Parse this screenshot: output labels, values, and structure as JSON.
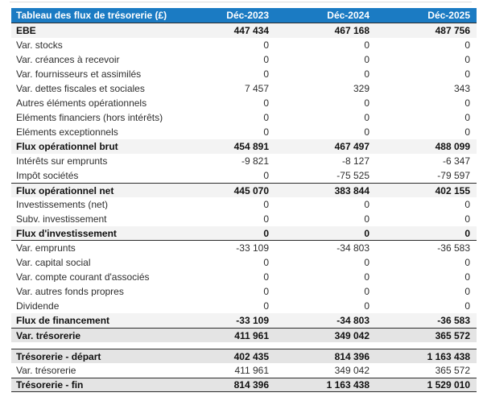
{
  "colors": {
    "header_bg": "#1b7bc3",
    "header_text": "#ffffff",
    "subtotal_row_bg": "#f3f3f3",
    "summary_row_bg": "#e4e4e4",
    "divider": "#2b2b2b"
  },
  "table": {
    "title": "Tableau des flux de trésorerie (£)",
    "columns": [
      "Déc-2023",
      "Déc-2024",
      "Déc-2025"
    ],
    "rows": [
      {
        "label": "EBE",
        "values": [
          "447 434",
          "467 168",
          "487 756"
        ],
        "bold": true,
        "bg": "light"
      },
      {
        "label": "Var. stocks",
        "values": [
          "0",
          "0",
          "0"
        ]
      },
      {
        "label": "Var. créances à recevoir",
        "values": [
          "0",
          "0",
          "0"
        ]
      },
      {
        "label": "Var. fournisseurs et assimilés",
        "values": [
          "0",
          "0",
          "0"
        ]
      },
      {
        "label": "Var. dettes fiscales et sociales",
        "values": [
          "7 457",
          "329",
          "343"
        ]
      },
      {
        "label": "Autres éléments opérationnels",
        "values": [
          "0",
          "0",
          "0"
        ]
      },
      {
        "label": "Eléments financiers (hors intérêts)",
        "values": [
          "0",
          "0",
          "0"
        ]
      },
      {
        "label": "Eléments exceptionnels",
        "values": [
          "0",
          "0",
          "0"
        ]
      },
      {
        "label": "Flux opérationnel brut",
        "values": [
          "454 891",
          "467 497",
          "488 099"
        ],
        "bold": true,
        "bg": "light"
      },
      {
        "label": "Intérêts sur emprunts",
        "values": [
          "-9 821",
          "-8 127",
          "-6 347"
        ]
      },
      {
        "label": "Impôt sociétés",
        "values": [
          "0",
          "-75 525",
          "-79 597"
        ]
      },
      {
        "label": "Flux opérationnel net",
        "values": [
          "445 070",
          "383 844",
          "402 155"
        ],
        "bold": true,
        "bg": "light",
        "bt": true
      },
      {
        "label": "Investissements (net)",
        "values": [
          "0",
          "0",
          "0"
        ]
      },
      {
        "label": "Subv. investissement",
        "values": [
          "0",
          "0",
          "0"
        ]
      },
      {
        "label": "Flux d'investissement",
        "values": [
          "0",
          "0",
          "0"
        ],
        "bold": true,
        "bg": "light",
        "bb": true
      },
      {
        "label": "Var. emprunts",
        "values": [
          "-33 109",
          "-34 803",
          "-36 583"
        ]
      },
      {
        "label": "Var. capital social",
        "values": [
          "0",
          "0",
          "0"
        ]
      },
      {
        "label": "Var. compte courant d'associés",
        "values": [
          "0",
          "0",
          "0"
        ]
      },
      {
        "label": "Var. autres fonds propres",
        "values": [
          "0",
          "0",
          "0"
        ]
      },
      {
        "label": "Dividende",
        "values": [
          "0",
          "0",
          "0"
        ]
      },
      {
        "label": "Flux de financement",
        "values": [
          "-33 109",
          "-34 803",
          "-36 583"
        ],
        "bold": true,
        "bg": "light"
      },
      {
        "label": "Var. trésorerie",
        "values": [
          "411 961",
          "349 042",
          "365 572"
        ],
        "bold": true,
        "bg": "mid",
        "bt": true
      },
      {
        "spacer": true
      },
      {
        "label": "Trésorerie - départ",
        "values": [
          "402 435",
          "814 396",
          "1 163 438"
        ],
        "bold": true,
        "bg": "mid",
        "bt": true
      },
      {
        "label": "Var. trésorerie",
        "values": [
          "411 961",
          "349 042",
          "365 572"
        ]
      },
      {
        "label": "Trésorerie - fin",
        "values": [
          "814 396",
          "1 163 438",
          "1 529 010"
        ],
        "bold": true,
        "bg": "mid",
        "bt": true,
        "bb": true
      }
    ]
  }
}
